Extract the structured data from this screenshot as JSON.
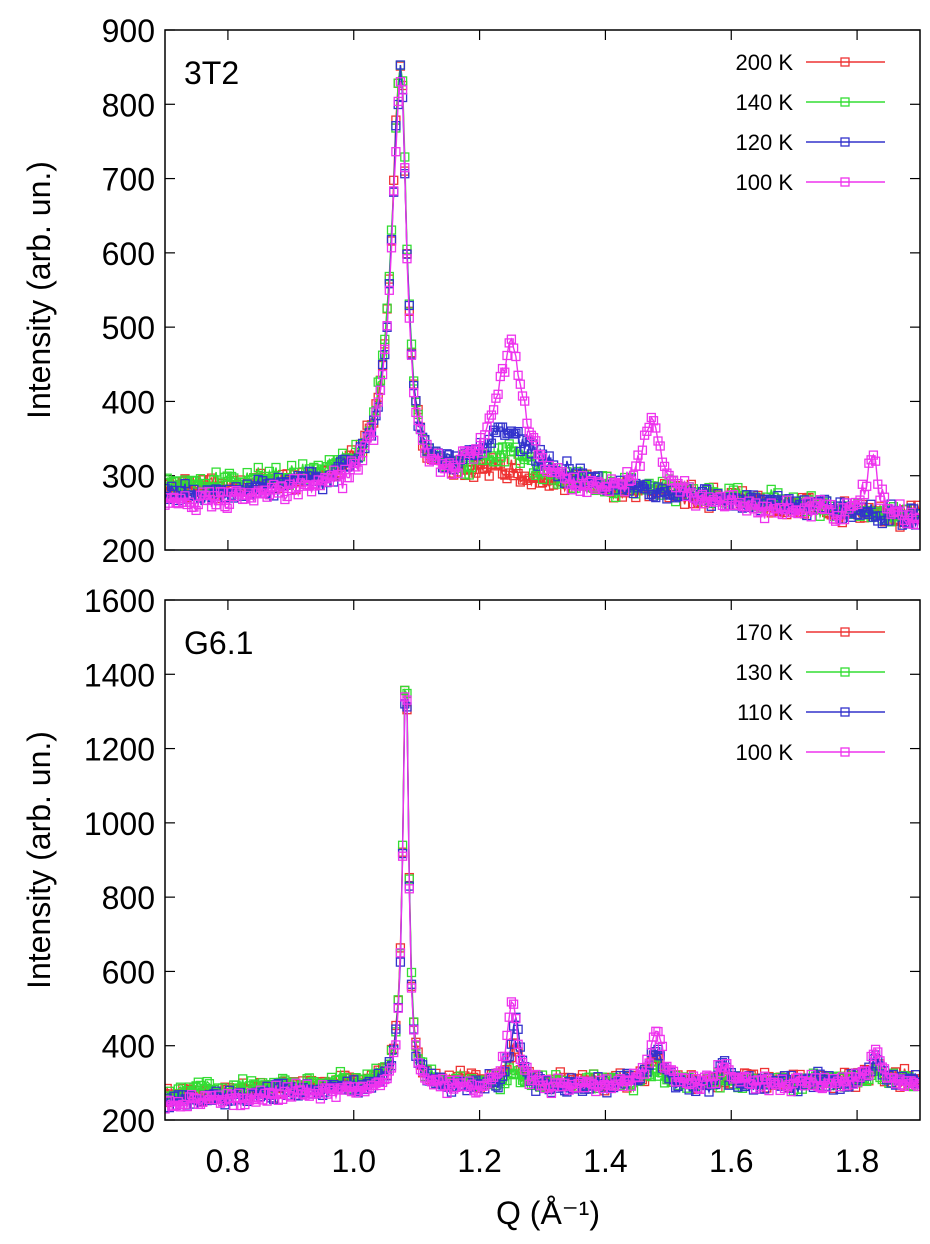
{
  "chart_data": [
    {
      "type": "scatter",
      "panel_label": "3T2",
      "ylabel": "Intensity (arb. un.)",
      "xlabel": "",
      "xlim": [
        0.7,
        1.9
      ],
      "ylim": [
        200,
        900
      ],
      "yticks": [
        "200",
        "300",
        "400",
        "500",
        "600",
        "700",
        "800",
        "900"
      ],
      "xticks": [],
      "legend_position": "top-right",
      "marker": "open-square-with-line",
      "series": [
        {
          "name": "200 K",
          "color": "#ee3333",
          "baseline": [
            [
              0.7,
              280
            ],
            [
              1.2,
              300
            ],
            [
              1.9,
              245
            ]
          ],
          "peaks": [
            [
              1.075,
              560,
              0.018,
              0.011
            ],
            [
              1.24,
              8,
              0.03,
              0.03
            ]
          ]
        },
        {
          "name": "140 K",
          "color": "#33dd33",
          "baseline": [
            [
              0.7,
              285
            ],
            [
              1.2,
              305
            ],
            [
              1.9,
              245
            ]
          ],
          "peaks": [
            [
              1.075,
              555,
              0.018,
              0.011
            ],
            [
              1.245,
              30,
              0.035,
              0.035
            ]
          ]
        },
        {
          "name": "120 K",
          "color": "#3333cc",
          "baseline": [
            [
              0.7,
              272
            ],
            [
              1.2,
              300
            ],
            [
              1.9,
              245
            ]
          ],
          "peaks": [
            [
              1.075,
              545,
              0.018,
              0.011
            ],
            [
              1.245,
              65,
              0.045,
              0.045
            ]
          ]
        },
        {
          "name": "100 K",
          "color": "#ee33ee",
          "baseline": [
            [
              0.7,
              262
            ],
            [
              1.2,
              290
            ],
            [
              1.9,
              238
            ]
          ],
          "peaks": [
            [
              1.075,
              545,
              0.018,
              0.011
            ],
            [
              1.25,
              185,
              0.03,
              0.025
            ],
            [
              1.475,
              110,
              0.017,
              0.015
            ],
            [
              1.825,
              80,
              0.014,
              0.012
            ]
          ]
        }
      ]
    },
    {
      "type": "scatter",
      "panel_label": "G6.1",
      "ylabel": "Intensity (arb. un.)",
      "xlabel": "Q (Å⁻¹)",
      "xlim": [
        0.7,
        1.9
      ],
      "ylim": [
        200,
        1600
      ],
      "yticks": [
        "200",
        "400",
        "600",
        "800",
        "1000",
        "1200",
        "1400",
        "1600"
      ],
      "xticks": [
        "0.8",
        "1.0",
        "1.2",
        "1.4",
        "1.6",
        "1.8"
      ],
      "legend_position": "top-right",
      "marker": "open-square-with-line",
      "series": [
        {
          "name": "170 K",
          "color": "#ee3333",
          "baseline": [
            [
              0.7,
              270
            ],
            [
              1.0,
              300
            ],
            [
              1.4,
              300
            ],
            [
              1.9,
              310
            ]
          ],
          "peaks": [
            [
              1.083,
              1140,
              0.006,
              0.005
            ],
            [
              1.255,
              100,
              0.01,
              0.01
            ],
            [
              1.48,
              70,
              0.012,
              0.012
            ],
            [
              1.83,
              40,
              0.01,
              0.01
            ]
          ]
        },
        {
          "name": "130 K",
          "color": "#33dd33",
          "baseline": [
            [
              0.7,
              275
            ],
            [
              1.0,
              300
            ],
            [
              1.4,
              300
            ],
            [
              1.9,
              305
            ]
          ],
          "peaks": [
            [
              1.083,
              1160,
              0.006,
              0.005
            ],
            [
              1.255,
              25,
              0.01,
              0.01
            ],
            [
              1.48,
              40,
              0.012,
              0.012
            ],
            [
              1.83,
              25,
              0.01,
              0.01
            ]
          ]
        },
        {
          "name": "110 K",
          "color": "#3333cc",
          "baseline": [
            [
              0.7,
              250
            ],
            [
              1.0,
              285
            ],
            [
              1.4,
              290
            ],
            [
              1.9,
              305
            ]
          ],
          "peaks": [
            [
              1.083,
              1130,
              0.006,
              0.005
            ],
            [
              1.258,
              180,
              0.01,
              0.009
            ],
            [
              1.48,
              100,
              0.012,
              0.012
            ],
            [
              1.59,
              40,
              0.01,
              0.01
            ],
            [
              1.83,
              70,
              0.01,
              0.01
            ]
          ]
        },
        {
          "name": "100 K",
          "color": "#ee33ee",
          "baseline": [
            [
              0.7,
              245
            ],
            [
              1.0,
              280
            ],
            [
              1.4,
              290
            ],
            [
              1.9,
              300
            ]
          ],
          "peaks": [
            [
              1.083,
              1150,
              0.006,
              0.005
            ],
            [
              1.252,
              240,
              0.01,
              0.009
            ],
            [
              1.48,
              150,
              0.012,
              0.012
            ],
            [
              1.59,
              55,
              0.01,
              0.01
            ],
            [
              1.83,
              95,
              0.01,
              0.01
            ]
          ]
        }
      ]
    }
  ]
}
